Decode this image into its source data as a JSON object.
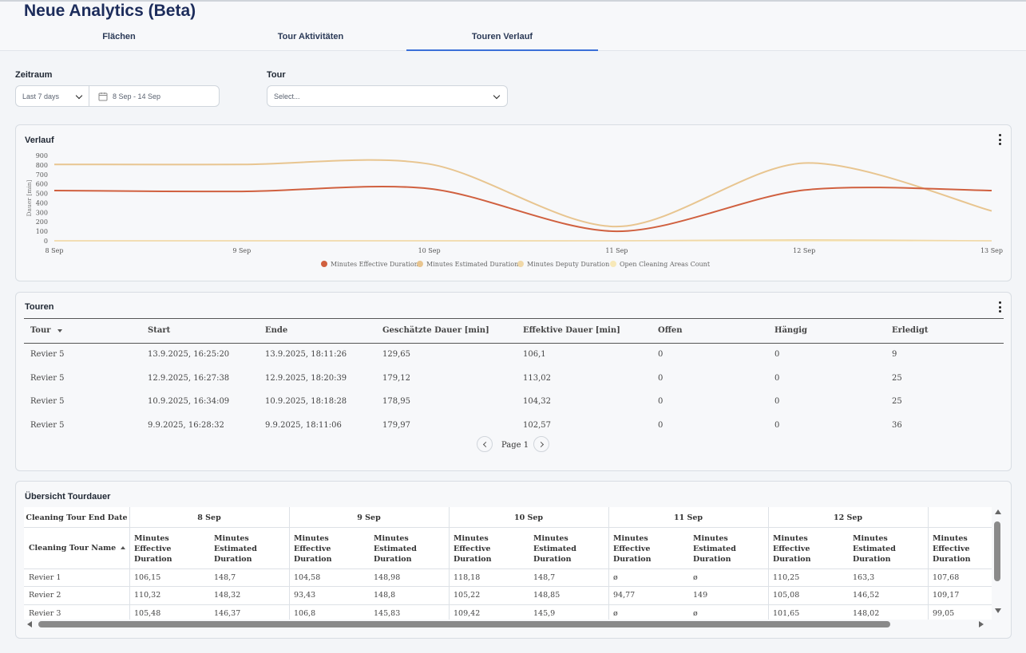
{
  "app": {
    "title": "Neue Analytics (Beta)"
  },
  "tabs": [
    {
      "label": "Flächen"
    },
    {
      "label": "Tour Aktivitäten"
    },
    {
      "label": "Touren Verlauf"
    }
  ],
  "filters": {
    "zeitraum_label": "Zeitraum",
    "range_value": "Last 7 days",
    "date_range": "8 Sep - 14 Sep",
    "tour_label": "Tour",
    "tour_placeholder": "Select..."
  },
  "verlauf": {
    "title": "Verlauf",
    "chart_data": {
      "type": "line",
      "x": [
        "8 Sep",
        "9 Sep",
        "10 Sep",
        "11 Sep",
        "12 Sep",
        "13 Sep"
      ],
      "ylabel": "Dauer [min]",
      "ylim": [
        0,
        900
      ],
      "yticks": [
        "900",
        "800",
        "700",
        "600",
        "500",
        "400",
        "300",
        "200",
        "100",
        "0"
      ],
      "grid": false,
      "legend_position": "bottom",
      "series": [
        {
          "name": "Minutes Effective Duration",
          "color": "#d0603f",
          "values": [
            530,
            520,
            550,
            100,
            535,
            530
          ]
        },
        {
          "name": "Minutes Estimated Duration",
          "color": "#e8c590",
          "values": [
            805,
            805,
            810,
            150,
            820,
            315
          ]
        },
        {
          "name": "Minutes Deputy Duration",
          "color": "#f0d8a8",
          "values": [
            0,
            0,
            0,
            0,
            10,
            0
          ]
        },
        {
          "name": "Open Cleaning Areas Count",
          "color": "#f7e8b8",
          "values": [
            0,
            0,
            0,
            0,
            0,
            0
          ]
        }
      ]
    }
  },
  "touren": {
    "title": "Touren",
    "columns": [
      "Tour",
      "Start",
      "Ende",
      "Geschätzte Dauer [min]",
      "Effektive Dauer [min]",
      "Offen",
      "Hängig",
      "Erledigt"
    ],
    "rows": [
      [
        "Revier 5",
        "13.9.2025, 16:25:20",
        "13.9.2025, 18:11:26",
        "129,65",
        "106,1",
        "0",
        "0",
        "9"
      ],
      [
        "Revier 5",
        "12.9.2025, 16:27:38",
        "12.9.2025, 18:20:39",
        "179,12",
        "113,02",
        "0",
        "0",
        "25"
      ],
      [
        "Revier 5",
        "10.9.2025, 16:34:09",
        "10.9.2025, 18:18:28",
        "178,95",
        "104,32",
        "0",
        "0",
        "25"
      ],
      [
        "Revier 5",
        "9.9.2025, 16:28:32",
        "9.9.2025, 18:11:06",
        "179,97",
        "102,57",
        "0",
        "0",
        "36"
      ]
    ],
    "page_label": "Page 1"
  },
  "uebersicht": {
    "title": "Übersicht Tourdauer",
    "corner_label": "Cleaning Tour End Date",
    "row_header_label": "Cleaning Tour Name",
    "dates": [
      "8 Sep",
      "9 Sep",
      "10 Sep",
      "11 Sep",
      "12 Sep"
    ],
    "metric_effective": "Minutes Effective Duration",
    "metric_estimated": "Minutes Estimated Duration",
    "rows": [
      {
        "name": "Revier 1",
        "values": [
          "106,15",
          "148,7",
          "104,58",
          "148,98",
          "118,18",
          "148,7",
          "ø",
          "ø",
          "110,25",
          "163,3",
          "107,68"
        ]
      },
      {
        "name": "Revier 2",
        "values": [
          "110,32",
          "148,32",
          "93,43",
          "148,8",
          "105,22",
          "148,85",
          "94,77",
          "149",
          "105,08",
          "146,52",
          "109,17"
        ]
      },
      {
        "name": "Revier 3",
        "values": [
          "105,48",
          "146,37",
          "106,8",
          "145,83",
          "109,42",
          "145,9",
          "ø",
          "ø",
          "101,65",
          "148,02",
          "99,05"
        ]
      }
    ]
  }
}
